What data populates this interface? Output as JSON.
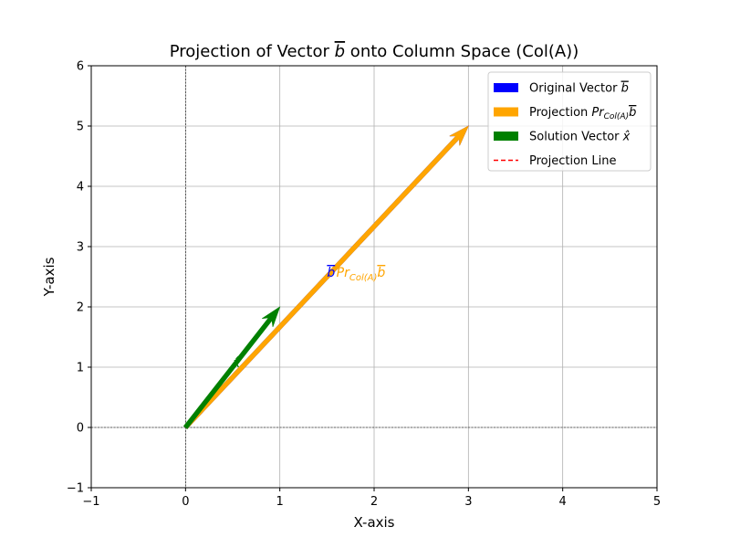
{
  "chart_data": {
    "type": "vector",
    "title": "Projection of Vector b onto Column Space (Col(A))",
    "title_prefix": "Projection of Vector ",
    "title_symbol": "b",
    "title_suffix": " onto Column Space (Col(A))",
    "xlabel": "X-axis",
    "ylabel": "Y-axis",
    "xlim": [
      -1,
      5
    ],
    "ylim": [
      -1,
      6
    ],
    "xticks": [
      -1,
      0,
      1,
      2,
      3,
      4,
      5
    ],
    "yticks": [
      -1,
      0,
      1,
      2,
      3,
      4,
      5,
      6
    ],
    "grid": true,
    "legend_position": "top-right",
    "series": [
      {
        "name": "Original Vector b",
        "legend_text": "Original Vector ",
        "legend_symbol": "b",
        "kind": "vector",
        "start": [
          0,
          0
        ],
        "end": [
          3,
          5
        ],
        "color": "#0000ff"
      },
      {
        "name": "Projection Pr_Col(A) b",
        "legend_text": "Projection ",
        "legend_symbol": "Pr",
        "legend_subscript": "Col(A)",
        "legend_symbol2": "b",
        "kind": "vector",
        "start": [
          0,
          0
        ],
        "end": [
          3,
          5
        ],
        "color": "#ffa500"
      },
      {
        "name": "Solution Vector x̂",
        "legend_text": "Solution Vector ",
        "legend_symbol": "x̂",
        "kind": "vector",
        "start": [
          0,
          0
        ],
        "end": [
          1,
          2
        ],
        "color": "#008000"
      },
      {
        "name": "Projection Line",
        "legend_text": "Projection Line",
        "kind": "dashed-line",
        "start": [
          3,
          5
        ],
        "end": [
          3,
          5
        ],
        "color": "#ff0000"
      }
    ],
    "annotations": [
      {
        "text_main": "b",
        "at": [
          1.5,
          2.5
        ],
        "color": "#0000ff"
      },
      {
        "text_main": "Pr",
        "text_sub": "Col(A)",
        "text_tail": "b",
        "at": [
          1.6,
          2.5
        ],
        "color": "#ffa500"
      },
      {
        "text_main": "x̂",
        "at": [
          0.5,
          1.0
        ],
        "color": "#008000"
      }
    ],
    "reference_lines": [
      {
        "axis": "x",
        "value": 0,
        "style": "dashed",
        "color": "#000000"
      },
      {
        "axis": "y",
        "value": 0,
        "style": "dashed",
        "color": "#000000"
      }
    ]
  }
}
